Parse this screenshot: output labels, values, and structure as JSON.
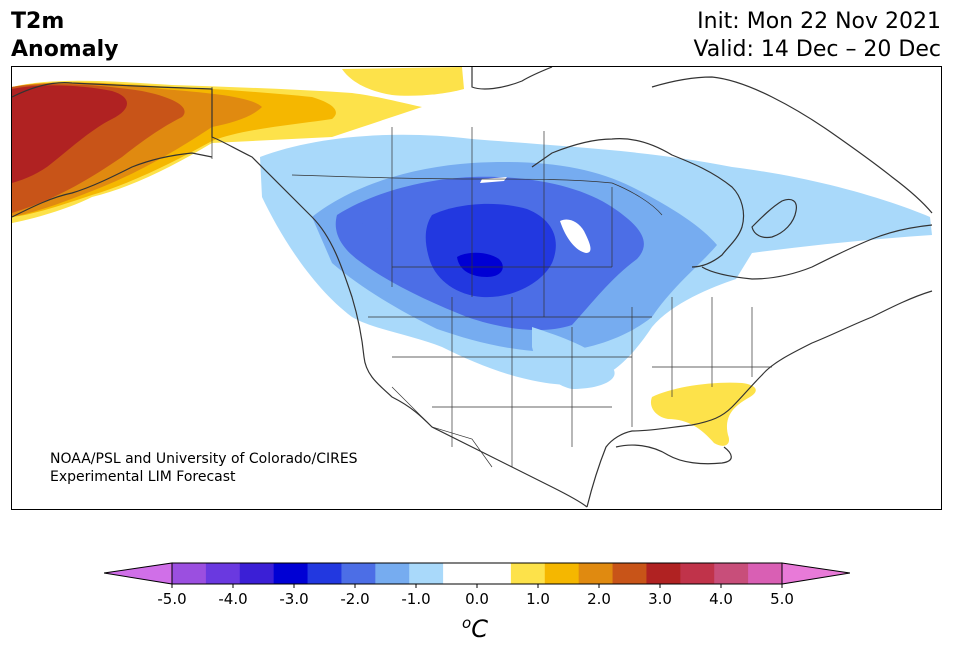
{
  "header": {
    "title_line1": "T2m",
    "title_line2": "Anomaly",
    "init": "Init: Mon 22 Nov 2021",
    "valid": "Valid: 14 Dec – 20 Dec"
  },
  "credit": {
    "line1": "NOAA/PSL and University of Colorado/CIRES",
    "line2": "Experimental LIM Forecast"
  },
  "colorbar": {
    "unit_base": "C",
    "unit_sup": "o",
    "tick_labels": [
      "-5.0",
      "-4.0",
      "-3.0",
      "-2.0",
      "-1.0",
      "0.0",
      "1.0",
      "2.0",
      "3.0",
      "4.0",
      "5.0"
    ],
    "colors": [
      "#9b4fe0",
      "#6a39e0",
      "#3b1fd6",
      "#0000d4",
      "#2238e0",
      "#4c6ee6",
      "#76acf0",
      "#a9d9fa",
      "#ffffff",
      "#ffffff",
      "#fde24a",
      "#f5b700",
      "#e08a10",
      "#c85418",
      "#b02222",
      "#c0334a",
      "#c84e7a",
      "#d95fb4"
    ],
    "under_color": "#d06fe8",
    "over_color": "#e87ad8"
  },
  "map": {
    "anomaly_colors": {
      "cold_1": "#a9d9fa",
      "cold_2": "#76acf0",
      "cold_3": "#4c6ee6",
      "cold_4": "#2238e0",
      "cold_5": "#0000d4",
      "warm_1": "#fde24a",
      "warm_2": "#f5b700",
      "warm_3": "#e08a10",
      "warm_4": "#c85418",
      "warm_5": "#b02222"
    }
  }
}
